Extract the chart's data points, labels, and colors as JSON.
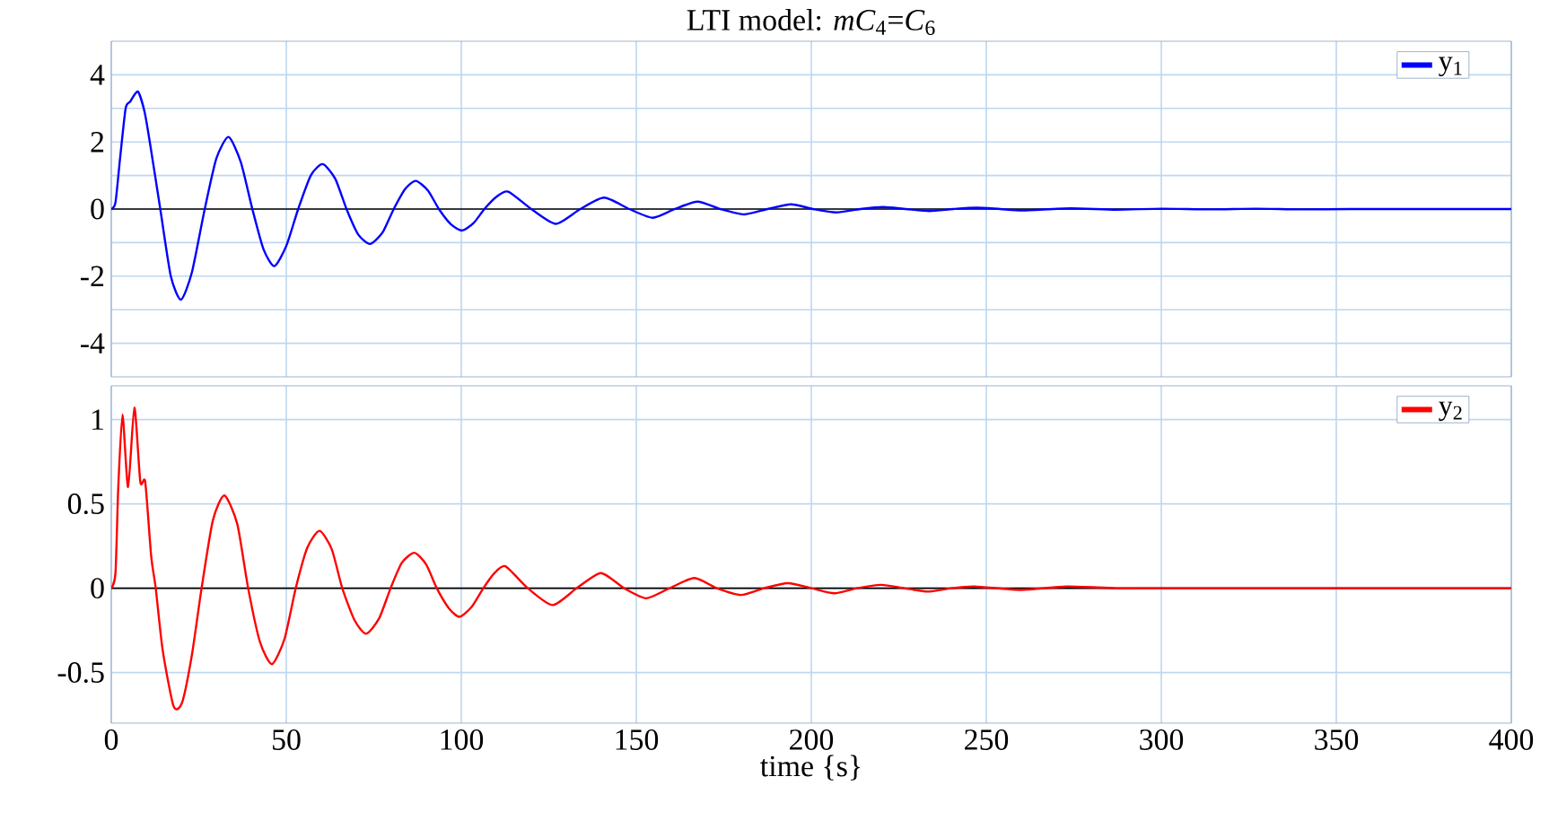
{
  "chart_data": [
    {
      "type": "line",
      "title": "LTI model: *mC*$_{4}$=*C*$_{6}$",
      "legend": "top right",
      "grid": true,
      "tick_labels": "y",
      "xlim": [
        0,
        400
      ],
      "xticks": [
        0,
        50,
        100,
        150,
        200,
        250,
        300,
        350,
        400
      ],
      "ylim": [
        -5,
        5
      ],
      "yticks": [
        -4,
        {
          "value": -3,
          "label": null
        },
        -2,
        {
          "value": -1,
          "label": null
        },
        0,
        {
          "value": 1,
          "label": null
        },
        2,
        {
          "value": 3,
          "label": null
        },
        4
      ],
      "ref_lines": [
        {
          "axis": "y",
          "value": 0,
          "color": "#000000"
        }
      ],
      "series": [
        {
          "name": "y$_{1}$",
          "color": "#0000ff",
          "x": [
            0,
            1.2,
            2.5,
            4.1,
            5.4,
            7.6,
            9.5,
            11,
            14,
            17,
            19.9,
            23,
            26.7,
            30,
            33.5,
            37,
            40.3,
            43.5,
            46.6,
            50,
            53.4,
            57,
            60.4,
            64,
            67.2,
            70.5,
            73.9,
            77.5,
            80.7,
            84,
            87,
            90.5,
            93.6,
            97,
            100.2,
            103.5,
            106.6,
            110,
            113.4,
            120,
            127,
            134,
            140.8,
            148,
            154.7,
            161,
            167.5,
            174,
            180.8,
            187.5,
            194.2,
            200.5,
            207.1,
            214,
            220.5,
            227,
            233.8,
            240.5,
            247.2,
            254,
            260.5,
            274,
            287,
            300,
            314,
            327,
            340,
            354,
            367,
            380,
            400
          ],
          "values": [
            0,
            0.2,
            1.5,
            3.0,
            3.2,
            3.5,
            2.9,
            2.0,
            0,
            -2.0,
            -2.7,
            -1.9,
            0,
            1.5,
            2.15,
            1.4,
            0,
            -1.2,
            -1.7,
            -1.1,
            0,
            1.0,
            1.34,
            0.9,
            0,
            -0.75,
            -1.04,
            -0.7,
            0,
            0.6,
            0.84,
            0.55,
            0,
            -0.45,
            -0.64,
            -0.42,
            0,
            0.36,
            0.52,
            0,
            -0.44,
            0,
            0.34,
            0,
            -0.26,
            0,
            0.22,
            0,
            -0.16,
            0,
            0.14,
            0,
            -0.1,
            0,
            0.06,
            0,
            -0.06,
            0,
            0.04,
            0,
            -0.04,
            0.02,
            -0.02,
            0.01,
            -0.01,
            0.01,
            -0.01,
            0,
            0,
            0,
            0
          ]
        }
      ]
    },
    {
      "type": "line",
      "xlabel": "time {s}",
      "legend": "top right",
      "grid": true,
      "xlim": [
        0,
        400
      ],
      "xticks": [
        0,
        50,
        100,
        150,
        200,
        250,
        300,
        350,
        400
      ],
      "ylim": [
        -0.8,
        1.2
      ],
      "yticks": [
        -0.5,
        0,
        0.5,
        1
      ],
      "ref_lines": [
        {
          "axis": "y",
          "value": 0,
          "color": "#000000"
        }
      ],
      "series": [
        {
          "name": "y$_{2}$",
          "color": "#ff0000",
          "x": [
            0,
            1.2,
            2,
            3.2,
            4.8,
            6.6,
            8.3,
            9.7,
            11.4,
            12.7,
            14.7,
            17.8,
            20.2,
            23,
            25.8,
            29,
            32.3,
            36,
            39.1,
            42.5,
            45.9,
            49.5,
            52.7,
            56,
            59.5,
            63,
            66,
            69.5,
            72.8,
            76.5,
            79.8,
            83,
            86.6,
            90,
            93,
            96.5,
            99.5,
            103,
            106.3,
            109.5,
            112.6,
            119,
            126.1,
            133,
            139.9,
            146.5,
            152.8,
            159.5,
            166.6,
            173,
            179.9,
            186.5,
            193.3,
            200,
            206.6,
            213,
            220,
            226.5,
            233.3,
            240,
            246.6,
            260,
            273,
            287,
            300,
            320,
            340,
            370,
            400
          ],
          "values": [
            0,
            0.09,
            0.6,
            1.03,
            0.6,
            1.07,
            0.63,
            0.63,
            0.19,
            0,
            -0.37,
            -0.7,
            -0.68,
            -0.4,
            0,
            0.4,
            0.55,
            0.38,
            0,
            -0.32,
            -0.45,
            -0.3,
            0,
            0.24,
            0.34,
            0.23,
            0,
            -0.19,
            -0.27,
            -0.18,
            0,
            0.15,
            0.21,
            0.14,
            0,
            -0.12,
            -0.17,
            -0.11,
            0,
            0.09,
            0.13,
            0,
            -0.1,
            0,
            0.09,
            0,
            -0.06,
            0,
            0.06,
            0,
            -0.04,
            0,
            0.03,
            0,
            -0.03,
            0,
            0.02,
            0,
            -0.02,
            0,
            0.01,
            -0.01,
            0.01,
            0,
            0,
            0,
            0,
            0,
            0
          ]
        }
      ]
    }
  ]
}
